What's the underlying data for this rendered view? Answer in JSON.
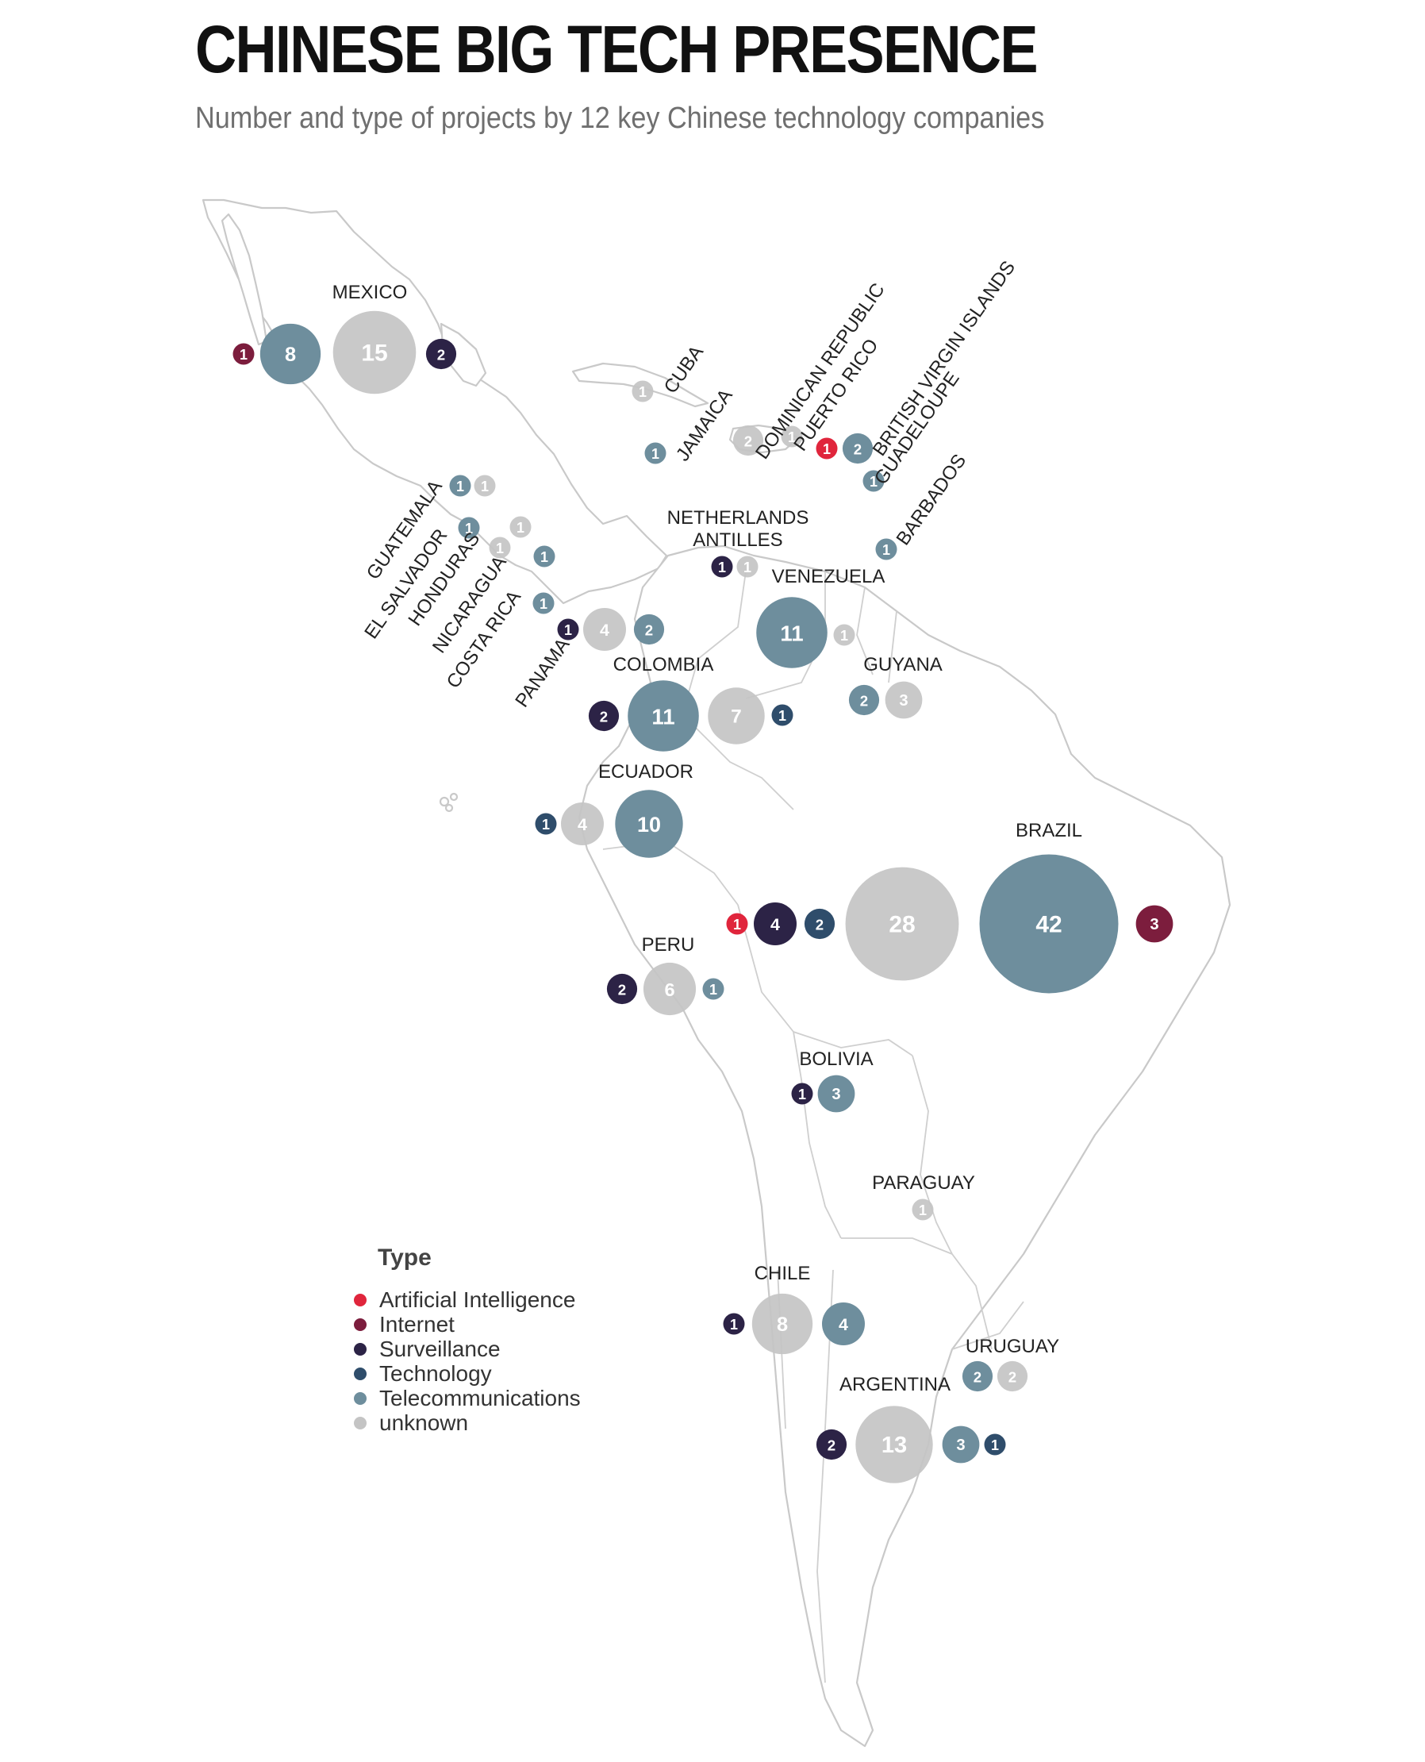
{
  "title": "CHINESE BIG TECH PRESENCE",
  "subtitle": "Number and type of projects by 12 key Chinese technology companies",
  "colors": {
    "Artificial Intelligence": "#e0253c",
    "Internet": "#7c1d3d",
    "Surveillance": "#2c2346",
    "Technology": "#2f4d6b",
    "Telecommunications": "#6e8e9d",
    "unknown": "#c4c4c4"
  },
  "legend": {
    "title": "Type",
    "items": [
      "Artificial Intelligence",
      "Internet",
      "Surveillance",
      "Technology",
      "Telecommunications",
      "unknown"
    ]
  },
  "countries": [
    {
      "label": "MEXICO",
      "projects": [
        {
          "type": "Internet",
          "count": 1
        },
        {
          "type": "Telecommunications",
          "count": 8
        },
        {
          "type": "unknown",
          "count": 15
        },
        {
          "type": "Surveillance",
          "count": 2
        }
      ]
    },
    {
      "label": "CUBA",
      "projects": [
        {
          "type": "unknown",
          "count": 1
        }
      ]
    },
    {
      "label": "JAMAICA",
      "projects": [
        {
          "type": "Telecommunications",
          "count": 1
        }
      ]
    },
    {
      "label": "DOMINICAN REPUBLIC",
      "projects": [
        {
          "type": "unknown",
          "count": 2
        }
      ]
    },
    {
      "label": "PUERTO RICO",
      "projects": [
        {
          "type": "unknown",
          "count": 1
        }
      ]
    },
    {
      "label": "BRITISH VIRGIN ISLANDS",
      "projects": [
        {
          "type": "Artificial Intelligence",
          "count": 1
        },
        {
          "type": "Telecommunications",
          "count": 2
        }
      ]
    },
    {
      "label": "GUADELOUPE",
      "projects": [
        {
          "type": "Telecommunications",
          "count": 1
        }
      ]
    },
    {
      "label": "BARBADOS",
      "projects": [
        {
          "type": "Telecommunications",
          "count": 1
        }
      ]
    },
    {
      "label": "GUATEMALA",
      "projects": [
        {
          "type": "Telecommunications",
          "count": 1
        },
        {
          "type": "unknown",
          "count": 1
        }
      ]
    },
    {
      "label": "EL SALVADOR",
      "projects": [
        {
          "type": "Telecommunications",
          "count": 1
        }
      ]
    },
    {
      "label": "HONDURAS",
      "projects": [
        {
          "type": "unknown",
          "count": 1
        },
        {
          "type": "unknown",
          "count": 1
        }
      ]
    },
    {
      "label": "NICARAGUA",
      "projects": [
        {
          "type": "Telecommunications",
          "count": 1
        }
      ]
    },
    {
      "label": "COSTA RICA",
      "projects": [
        {
          "type": "Telecommunications",
          "count": 1
        }
      ]
    },
    {
      "label": "PANAMA",
      "projects": [
        {
          "type": "Surveillance",
          "count": 1
        },
        {
          "type": "unknown",
          "count": 4
        },
        {
          "type": "Telecommunications",
          "count": 2
        }
      ]
    },
    {
      "label": "NETHERLANDS ANTILLES",
      "projects": [
        {
          "type": "Surveillance",
          "count": 1
        },
        {
          "type": "unknown",
          "count": 1
        }
      ]
    },
    {
      "label": "VENEZUELA",
      "projects": [
        {
          "type": "Telecommunications",
          "count": 11
        },
        {
          "type": "unknown",
          "count": 1
        }
      ]
    },
    {
      "label": "GUYANA",
      "projects": [
        {
          "type": "Telecommunications",
          "count": 2
        },
        {
          "type": "unknown",
          "count": 3
        }
      ]
    },
    {
      "label": "COLOMBIA",
      "projects": [
        {
          "type": "Surveillance",
          "count": 2
        },
        {
          "type": "Telecommunications",
          "count": 11
        },
        {
          "type": "unknown",
          "count": 7
        },
        {
          "type": "Technology",
          "count": 1
        }
      ]
    },
    {
      "label": "ECUADOR",
      "projects": [
        {
          "type": "Technology",
          "count": 1
        },
        {
          "type": "unknown",
          "count": 4
        },
        {
          "type": "Telecommunications",
          "count": 10
        }
      ]
    },
    {
      "label": "BRAZIL",
      "projects": [
        {
          "type": "Artificial Intelligence",
          "count": 1
        },
        {
          "type": "Surveillance",
          "count": 4
        },
        {
          "type": "Technology",
          "count": 2
        },
        {
          "type": "unknown",
          "count": 28
        },
        {
          "type": "Telecommunications",
          "count": 42
        },
        {
          "type": "Internet",
          "count": 3
        }
      ]
    },
    {
      "label": "PERU",
      "projects": [
        {
          "type": "Surveillance",
          "count": 2
        },
        {
          "type": "unknown",
          "count": 6
        },
        {
          "type": "Telecommunications",
          "count": 1
        }
      ]
    },
    {
      "label": "BOLIVIA",
      "projects": [
        {
          "type": "Surveillance",
          "count": 1
        },
        {
          "type": "Telecommunications",
          "count": 3
        }
      ]
    },
    {
      "label": "PARAGUAY",
      "projects": [
        {
          "type": "unknown",
          "count": 1
        }
      ]
    },
    {
      "label": "CHILE",
      "projects": [
        {
          "type": "Surveillance",
          "count": 1
        },
        {
          "type": "unknown",
          "count": 8
        },
        {
          "type": "Telecommunications",
          "count": 4
        }
      ]
    },
    {
      "label": "URUGUAY",
      "projects": [
        {
          "type": "Telecommunications",
          "count": 2
        },
        {
          "type": "unknown",
          "count": 2
        }
      ]
    },
    {
      "label": "ARGENTINA",
      "projects": [
        {
          "type": "Surveillance",
          "count": 2
        },
        {
          "type": "unknown",
          "count": 13
        },
        {
          "type": "Telecommunications",
          "count": 3
        },
        {
          "type": "Technology",
          "count": 1
        }
      ]
    }
  ]
}
